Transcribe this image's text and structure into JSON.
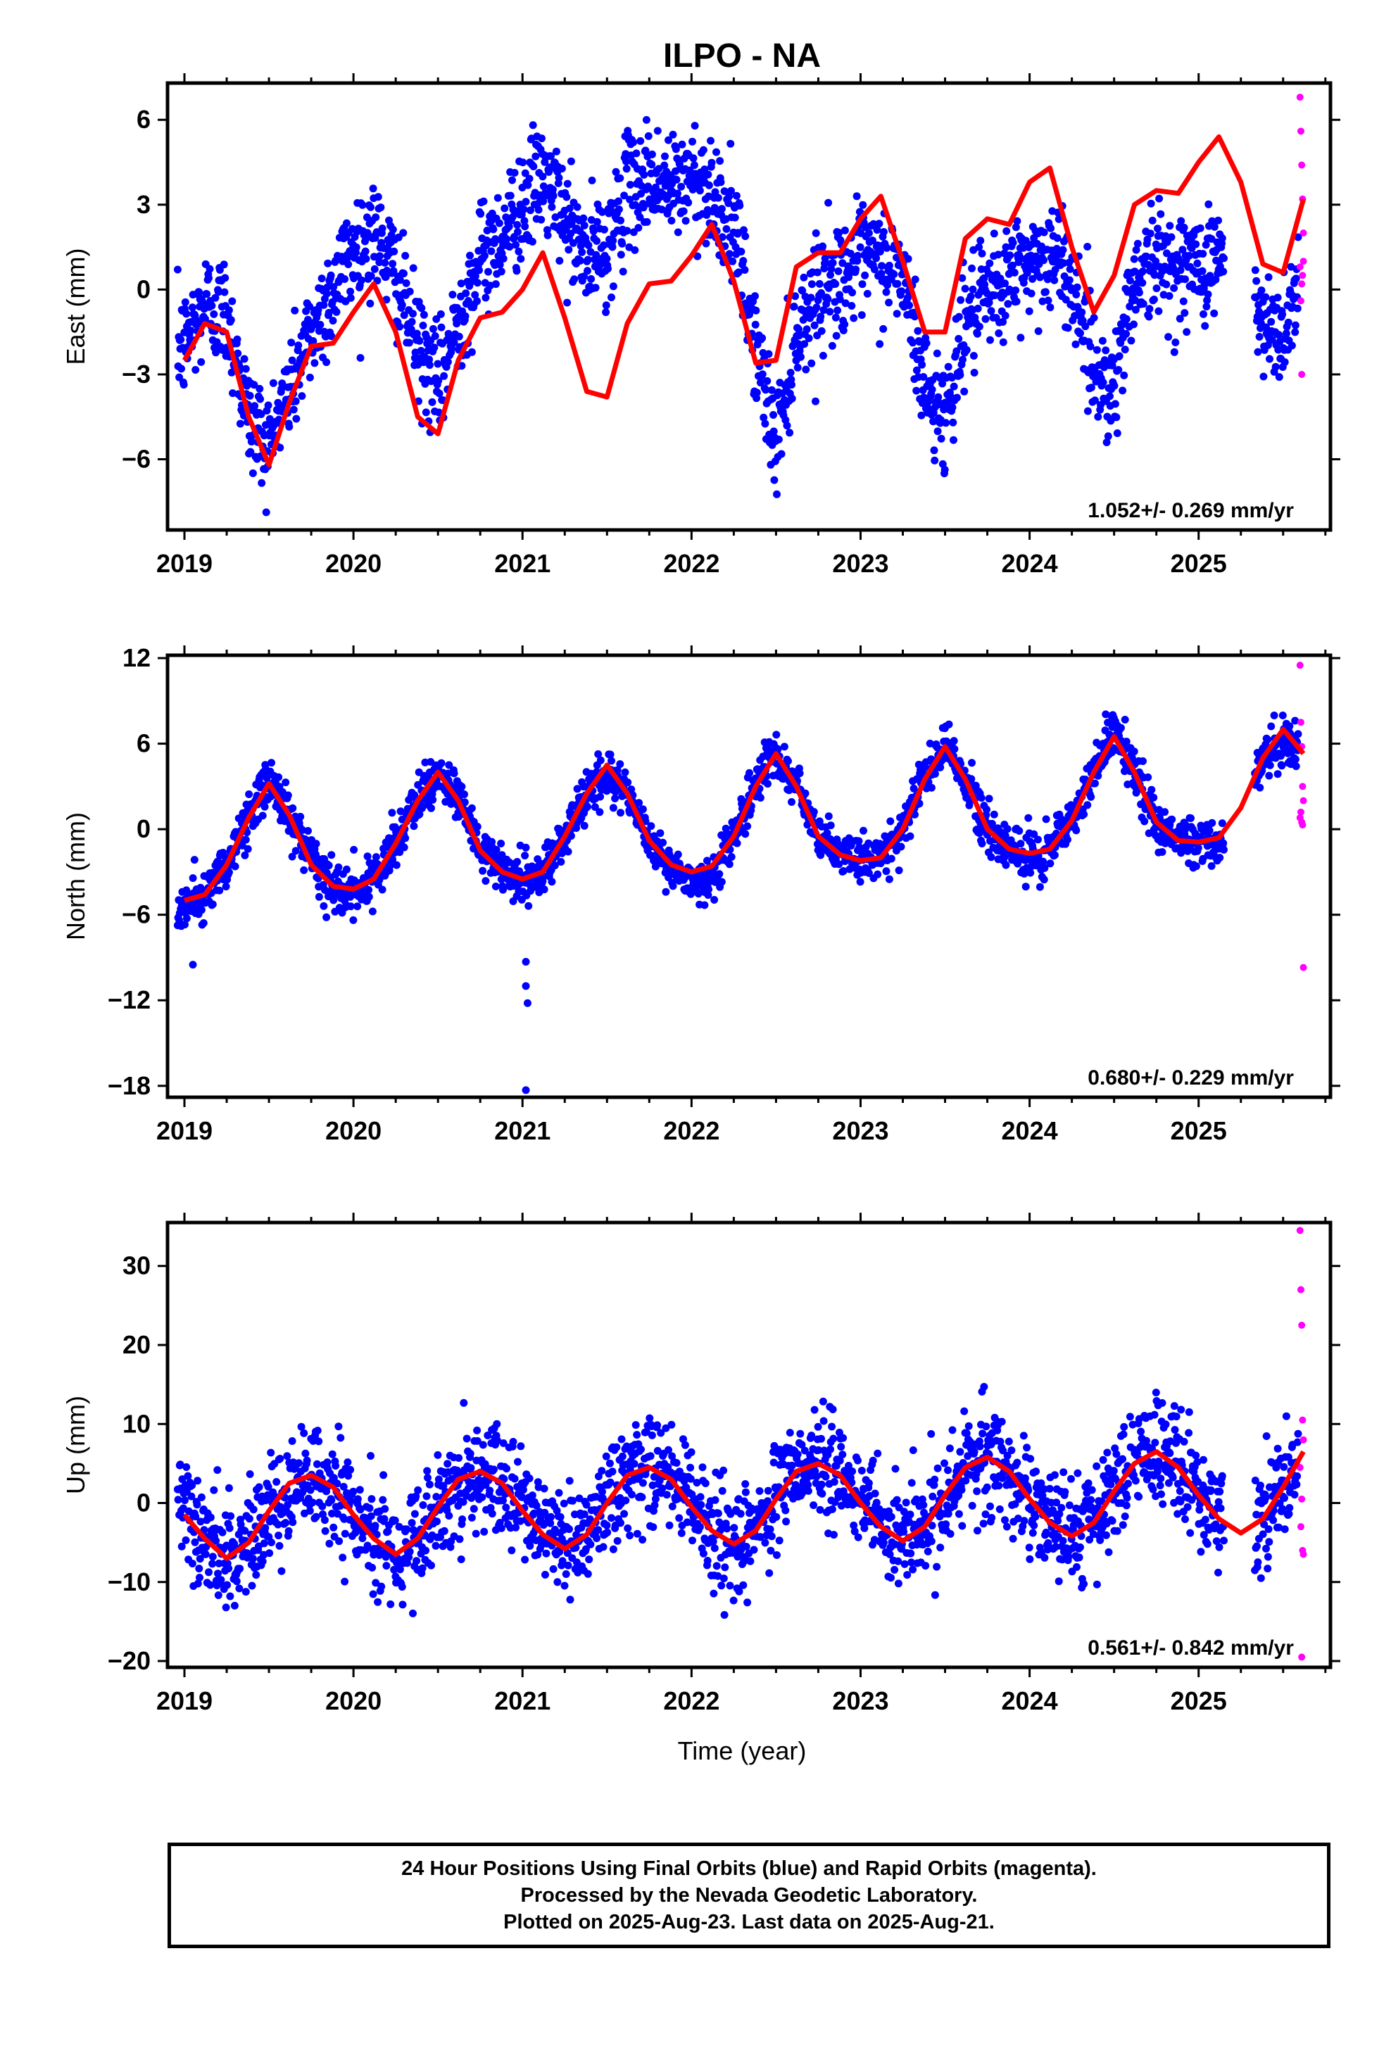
{
  "title": "ILPO - NA",
  "xlabel": "Time (year)",
  "footer": {
    "line1": "24 Hour Positions Using Final Orbits (blue) and Rapid Orbits (magenta).",
    "line2": "Processed by the Nevada Geodetic Laboratory.",
    "line3": "Plotted on 2025-Aug-23. Last data on 2025-Aug-21."
  },
  "colors": {
    "final": "#0000ff",
    "rapid": "#ff00ff",
    "model": "#ff0000"
  },
  "chart_data": [
    {
      "type": "scatter",
      "title": "ILPO - NA",
      "ylabel": "East (mm)",
      "xlim": [
        2018.9,
        2025.78
      ],
      "ylim": [
        -8.5,
        7.3
      ],
      "yticks": [
        -6,
        -3,
        0,
        3,
        6
      ],
      "ytick_labels": [
        "−6",
        "−3",
        "0",
        "3",
        "6"
      ],
      "xticks": [
        2019,
        2020,
        2021,
        2022,
        2023,
        2024,
        2025
      ],
      "rate_label": "1.052+/- 0.269 mm/yr",
      "model_curve": {
        "name": "model",
        "x": [
          2019.0,
          2019.12,
          2019.25,
          2019.38,
          2019.5,
          2019.62,
          2019.75,
          2019.88,
          2020.0,
          2020.12,
          2020.25,
          2020.38,
          2020.5,
          2020.62,
          2020.75,
          2020.88,
          2021.0,
          2021.12,
          2021.25,
          2021.38,
          2021.5,
          2021.62,
          2021.75,
          2021.88,
          2022.0,
          2022.12,
          2022.25,
          2022.38,
          2022.5,
          2022.62,
          2022.75,
          2022.88,
          2023.0,
          2023.12,
          2023.25,
          2023.38,
          2023.5,
          2023.62,
          2023.75,
          2023.88,
          2024.0,
          2024.12,
          2024.25,
          2024.38,
          2024.5,
          2024.62,
          2024.75,
          2024.88,
          2025.0,
          2025.12,
          2025.25,
          2025.38,
          2025.5,
          2025.62
        ],
        "y": [
          -2.5,
          -1.2,
          -1.5,
          -4.5,
          -6.2,
          -4.0,
          -2.0,
          -1.9,
          -0.8,
          0.2,
          -1.5,
          -4.5,
          -5.1,
          -2.5,
          -1.0,
          -0.8,
          0.0,
          1.3,
          -1.0,
          -3.6,
          -3.8,
          -1.2,
          0.2,
          0.3,
          1.2,
          2.3,
          0.3,
          -2.6,
          -2.5,
          0.8,
          1.3,
          1.3,
          2.5,
          3.3,
          1.0,
          -1.5,
          -1.5,
          1.8,
          2.5,
          2.3,
          3.8,
          4.3,
          1.5,
          -0.8,
          0.5,
          3.0,
          3.5,
          3.4,
          4.5,
          5.4,
          3.8,
          0.9,
          0.6,
          3.2
        ]
      },
      "final_scatter": {
        "name": "Final Orbits (blue)",
        "centers": [
          -2.0,
          -0.5,
          -0.8,
          -4.5,
          -5.5,
          -3.5,
          -1.5,
          0.0,
          1.5,
          2.0,
          0.5,
          -2.0,
          -3.5,
          -1.0,
          1.0,
          2.0,
          3.0,
          4.0,
          2.5,
          1.0,
          1.5,
          3.5,
          4.0,
          3.5,
          4.0,
          3.5,
          2.0,
          -2.0,
          -5.5,
          -1.5,
          0.0,
          0.5,
          1.0,
          1.0,
          0.5,
          -3.5,
          -4.5,
          -1.0,
          -0.5,
          0.5,
          1.0,
          1.2,
          0.5,
          -2.8,
          -3.5,
          0.5,
          1.0,
          0.8,
          0.8,
          1.2,
          1.0,
          -1.5,
          -1.5,
          1.0
        ],
        "spread": 1.3,
        "gap": [
          2025.15,
          2025.33
        ]
      },
      "rapid_points": {
        "name": "Rapid Orbits (magenta)",
        "x": [
          2025.6,
          2025.605,
          2025.61,
          2025.615,
          2025.62,
          2025.6,
          2025.61,
          2025.605,
          2025.615,
          2025.62,
          2025.61
        ],
        "y": [
          6.8,
          5.6,
          4.4,
          3.2,
          2.0,
          0.8,
          0.2,
          -0.4,
          0.5,
          1.0,
          -3.0
        ]
      }
    },
    {
      "type": "scatter",
      "ylabel": "North (mm)",
      "xlim": [
        2018.9,
        2025.78
      ],
      "ylim": [
        -18.8,
        12.2
      ],
      "yticks": [
        -18,
        -12,
        -6,
        0,
        6,
        12
      ],
      "ytick_labels": [
        "−18",
        "−12",
        "−6",
        "0",
        "6",
        "12"
      ],
      "xticks": [
        2019,
        2020,
        2021,
        2022,
        2023,
        2024,
        2025
      ],
      "rate_label": "0.680+/- 0.229 mm/yr",
      "model_curve": {
        "name": "model",
        "x": [
          2019.0,
          2019.12,
          2019.25,
          2019.38,
          2019.5,
          2019.62,
          2019.75,
          2019.88,
          2020.0,
          2020.12,
          2020.25,
          2020.38,
          2020.5,
          2020.62,
          2020.75,
          2020.88,
          2021.0,
          2021.12,
          2021.25,
          2021.38,
          2021.5,
          2021.62,
          2021.75,
          2021.88,
          2022.0,
          2022.12,
          2022.25,
          2022.38,
          2022.5,
          2022.62,
          2022.75,
          2022.88,
          2023.0,
          2023.12,
          2023.25,
          2023.38,
          2023.5,
          2023.62,
          2023.75,
          2023.88,
          2024.0,
          2024.12,
          2024.25,
          2024.38,
          2024.5,
          2024.62,
          2024.75,
          2024.88,
          2025.0,
          2025.12,
          2025.25,
          2025.38,
          2025.5,
          2025.62
        ],
        "y": [
          -5.0,
          -4.6,
          -2.5,
          0.8,
          3.2,
          1.0,
          -2.5,
          -4.0,
          -4.2,
          -3.5,
          -1.0,
          2.0,
          4.0,
          2.0,
          -1.5,
          -3.0,
          -3.5,
          -3.0,
          -0.5,
          2.5,
          4.5,
          2.5,
          -0.8,
          -2.5,
          -3.0,
          -2.6,
          -0.5,
          3.0,
          5.3,
          3.0,
          -0.5,
          -1.8,
          -2.2,
          -2.0,
          0.0,
          3.5,
          5.8,
          3.5,
          0.0,
          -1.4,
          -1.7,
          -1.4,
          0.6,
          4.0,
          6.5,
          4.0,
          0.5,
          -0.8,
          -0.9,
          -0.6,
          1.5,
          5.0,
          7.0,
          5.3
        ]
      },
      "final_scatter": {
        "name": "Final Orbits (blue)",
        "centers": [
          -5.5,
          -4.6,
          -2.5,
          0.8,
          3.5,
          1.0,
          -2.5,
          -4.0,
          -4.8,
          -3.5,
          -1.0,
          2.0,
          4.0,
          2.0,
          -1.5,
          -3.0,
          -3.8,
          -3.0,
          -0.5,
          2.5,
          4.0,
          2.5,
          -0.8,
          -2.5,
          -4.0,
          -3.5,
          -0.5,
          3.0,
          5.5,
          3.0,
          -0.5,
          -1.8,
          -2.2,
          -2.0,
          0.0,
          3.5,
          6.0,
          3.5,
          0.0,
          -1.4,
          -1.8,
          -1.4,
          0.6,
          4.0,
          7.0,
          4.0,
          0.5,
          -0.8,
          -1.0,
          -0.8,
          1.0,
          5.0,
          6.0,
          5.5
        ],
        "spread": 1.1,
        "gap": [
          2025.15,
          2025.33
        ],
        "outliers": {
          "x": [
            2019.05,
            2021.02,
            2021.02,
            2021.03,
            2021.02
          ],
          "y": [
            -9.5,
            -9.3,
            -11.0,
            -12.2,
            -18.3
          ]
        }
      },
      "rapid_points": {
        "name": "Rapid Orbits (magenta)",
        "x": [
          2025.6,
          2025.605,
          2025.61,
          2025.615,
          2025.62,
          2025.6,
          2025.61,
          2025.605,
          2025.615,
          2025.62
        ],
        "y": [
          11.5,
          7.5,
          5.8,
          3.0,
          2.0,
          0.8,
          0.5,
          1.2,
          0.3,
          -9.7
        ]
      }
    },
    {
      "type": "scatter",
      "ylabel": "Up (mm)",
      "xlabel": "Time (year)",
      "xlim": [
        2018.9,
        2025.78
      ],
      "ylim": [
        -20.8,
        35.5
      ],
      "yticks": [
        -20,
        -10,
        0,
        10,
        20,
        30
      ],
      "ytick_labels": [
        "−20",
        "−10",
        "0",
        "10",
        "20",
        "30"
      ],
      "xticks": [
        2019,
        2020,
        2021,
        2022,
        2023,
        2024,
        2025
      ],
      "rate_label": "0.561+/- 0.842 mm/yr",
      "model_curve": {
        "name": "model",
        "x": [
          2019.0,
          2019.12,
          2019.25,
          2019.38,
          2019.5,
          2019.62,
          2019.75,
          2019.88,
          2020.0,
          2020.12,
          2020.25,
          2020.38,
          2020.5,
          2020.62,
          2020.75,
          2020.88,
          2021.0,
          2021.12,
          2021.25,
          2021.38,
          2021.5,
          2021.62,
          2021.75,
          2021.88,
          2022.0,
          2022.12,
          2022.25,
          2022.38,
          2022.5,
          2022.62,
          2022.75,
          2022.88,
          2023.0,
          2023.12,
          2023.25,
          2023.38,
          2023.5,
          2023.62,
          2023.75,
          2023.88,
          2024.0,
          2024.12,
          2024.25,
          2024.38,
          2024.5,
          2024.62,
          2024.75,
          2024.88,
          2025.0,
          2025.12,
          2025.25,
          2025.38,
          2025.5,
          2025.62
        ],
        "y": [
          -1.5,
          -4.5,
          -7.0,
          -5.0,
          -1.0,
          2.5,
          3.5,
          2.0,
          -1.5,
          -4.5,
          -6.5,
          -4.5,
          -0.5,
          3.0,
          4.0,
          2.5,
          -1.0,
          -4.0,
          -5.8,
          -4.0,
          0.0,
          3.5,
          4.5,
          3.0,
          -0.5,
          -3.5,
          -5.2,
          -3.5,
          0.5,
          4.0,
          5.0,
          3.5,
          0.0,
          -3.0,
          -4.8,
          -3.0,
          1.0,
          4.5,
          5.8,
          4.0,
          0.5,
          -2.5,
          -4.2,
          -2.5,
          1.5,
          5.0,
          6.5,
          4.5,
          1.0,
          -2.0,
          -3.8,
          -2.0,
          2.0,
          6.5
        ]
      },
      "final_scatter": {
        "name": "Final Orbits (blue)",
        "centers": [
          -1.5,
          -4.5,
          -7.0,
          -5.0,
          -1.0,
          2.5,
          3.5,
          2.0,
          -1.5,
          -4.5,
          -6.5,
          -4.5,
          -0.5,
          3.0,
          4.0,
          2.5,
          -1.0,
          -4.0,
          -5.8,
          -4.0,
          0.0,
          3.5,
          4.5,
          3.0,
          -0.5,
          -3.5,
          -5.2,
          -3.5,
          0.5,
          4.0,
          5.0,
          3.5,
          0.0,
          -3.0,
          -4.8,
          -3.0,
          1.0,
          4.5,
          5.8,
          4.0,
          0.5,
          -2.5,
          -4.2,
          -2.5,
          1.5,
          5.0,
          6.5,
          4.5,
          1.0,
          -2.0,
          -3.8,
          -2.0,
          2.0,
          6.5
        ],
        "spread": 4.5,
        "gap": [
          2025.15,
          2025.33
        ]
      },
      "rapid_points": {
        "name": "Rapid Orbits (magenta)",
        "x": [
          2025.6,
          2025.605,
          2025.61,
          2025.615,
          2025.62,
          2025.6,
          2025.61,
          2025.605,
          2025.615,
          2025.62,
          2025.61
        ],
        "y": [
          34.5,
          27.0,
          22.5,
          10.5,
          8.0,
          4.5,
          0.5,
          -3.0,
          -6.0,
          -6.5,
          -19.5
        ]
      }
    }
  ]
}
